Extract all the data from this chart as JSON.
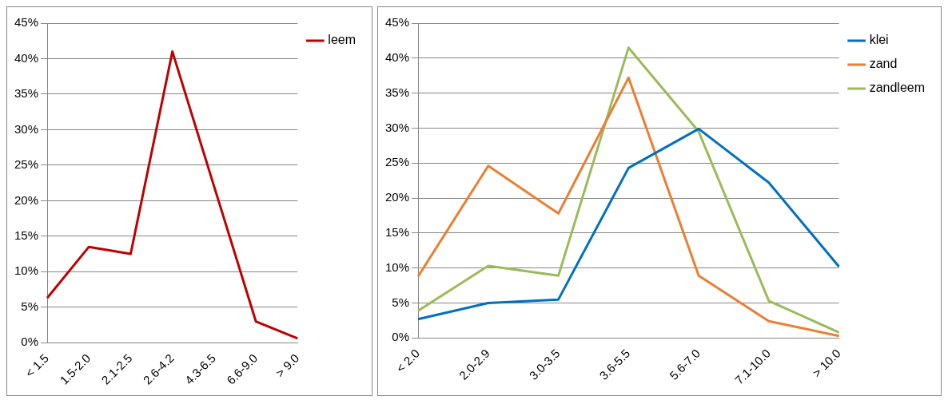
{
  "chart_data": [
    {
      "type": "line",
      "categories": [
        "< 1.5",
        "1.5-2.0",
        "2.1-2.5",
        "2.6-4.2",
        "4.3-6.5",
        "6.6-9.0",
        "> 9.0"
      ],
      "series": [
        {
          "name": "leem",
          "color": "#c00000",
          "values": [
            6.3,
            13.5,
            12.5,
            41.0,
            22.0,
            3.0,
            0.6
          ]
        }
      ],
      "ylim": [
        0,
        45
      ],
      "yticks": [
        {
          "value": 0,
          "label": "0%"
        },
        {
          "value": 5,
          "label": "5%"
        },
        {
          "value": 10,
          "label": "10%"
        },
        {
          "value": 15,
          "label": "15%"
        },
        {
          "value": 20,
          "label": "20%"
        },
        {
          "value": 25,
          "label": "25%"
        },
        {
          "value": 30,
          "label": "30%"
        },
        {
          "value": 35,
          "label": "35%"
        },
        {
          "value": 40,
          "label": "40%"
        },
        {
          "value": 45,
          "label": "45%"
        }
      ],
      "grid": "y",
      "legend": "top right",
      "marker": "none",
      "line_style": "solid"
    },
    {
      "type": "line",
      "categories": [
        "< 2.0",
        "2.0-2.9",
        "3.0-3.5",
        "3.6-5.5",
        "5.6-7.0",
        "7.1-10.0",
        "> 10.0"
      ],
      "series": [
        {
          "name": "klei",
          "color": "#0070c0",
          "values": [
            2.7,
            5.0,
            5.5,
            24.3,
            29.9,
            22.2,
            10.2
          ]
        },
        {
          "name": "zand",
          "color": "#ed7d31",
          "values": [
            8.8,
            24.6,
            17.8,
            37.2,
            8.9,
            2.4,
            0.3
          ]
        },
        {
          "name": "zandleem",
          "color": "#9bbb59",
          "values": [
            3.9,
            10.3,
            8.9,
            41.5,
            29.5,
            5.3,
            0.8
          ]
        }
      ],
      "ylim": [
        0,
        45
      ],
      "yticks": [
        {
          "value": 0,
          "label": "0%"
        },
        {
          "value": 5,
          "label": "5%"
        },
        {
          "value": 10,
          "label": "10%"
        },
        {
          "value": 15,
          "label": "15%"
        },
        {
          "value": 20,
          "label": "20%"
        },
        {
          "value": 25,
          "label": "25%"
        },
        {
          "value": 30,
          "label": "30%"
        },
        {
          "value": 35,
          "label": "35%"
        },
        {
          "value": 40,
          "label": "40%"
        },
        {
          "value": 45,
          "label": "45%"
        }
      ],
      "grid": "y",
      "legend": "top right",
      "marker": "none",
      "line_style": "solid"
    }
  ]
}
